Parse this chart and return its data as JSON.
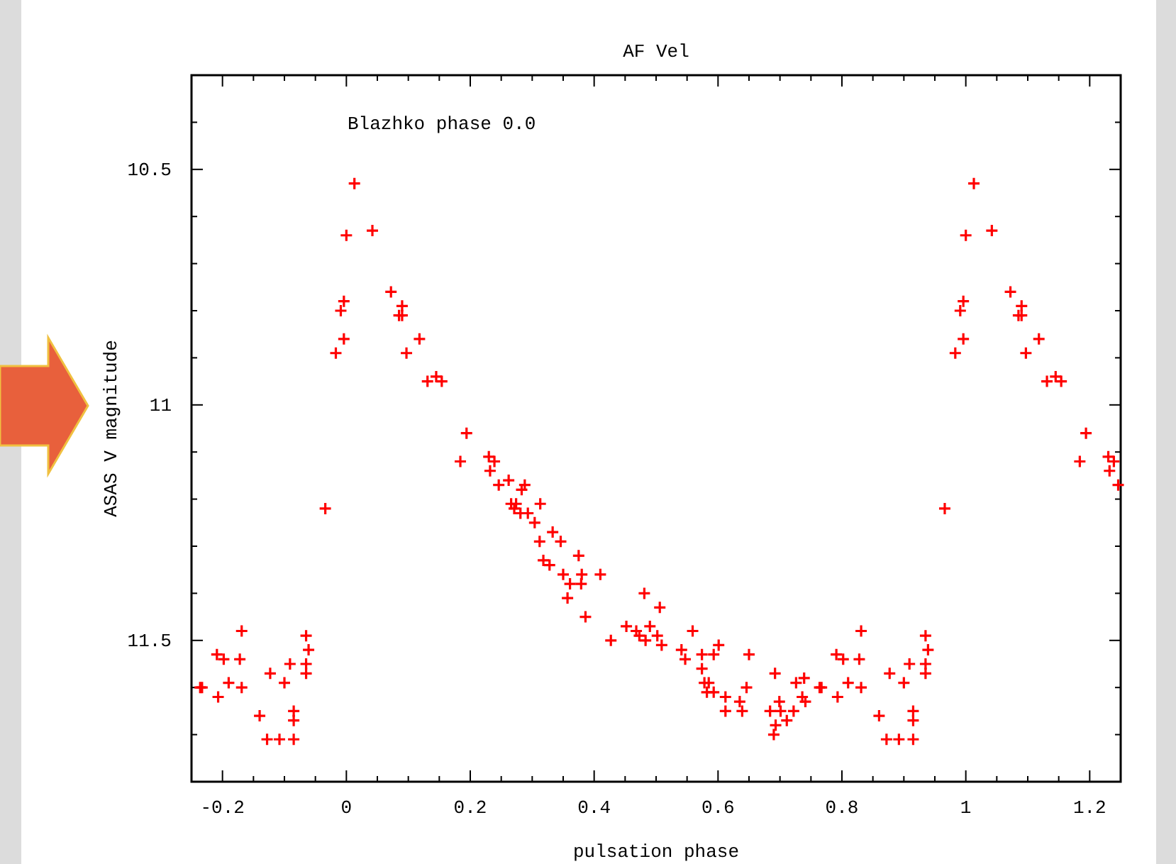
{
  "chart_data": {
    "type": "scatter",
    "title": "AF Vel",
    "xlabel": "pulsation phase",
    "ylabel": "ASAS V magnitude",
    "annotations": [
      "Blazhko phase 0.0"
    ],
    "marker": "cross",
    "grid": false,
    "xlim": [
      -0.25,
      1.25
    ],
    "ylim": [
      11.8,
      10.3
    ],
    "xticks": [
      -0.2,
      {
        "value": -0.15,
        "label": null
      },
      {
        "value": -0.1,
        "label": null
      },
      {
        "value": -0.05,
        "label": null
      },
      0,
      {
        "value": 0.05,
        "label": null
      },
      {
        "value": 0.1,
        "label": null
      },
      {
        "value": 0.15,
        "label": null
      },
      0.2,
      {
        "value": 0.25,
        "label": null
      },
      {
        "value": 0.3,
        "label": null
      },
      {
        "value": 0.35,
        "label": null
      },
      0.4,
      {
        "value": 0.45,
        "label": null
      },
      {
        "value": 0.5,
        "label": null
      },
      {
        "value": 0.55,
        "label": null
      },
      0.6,
      {
        "value": 0.65,
        "label": null
      },
      {
        "value": 0.7,
        "label": null
      },
      {
        "value": 0.75,
        "label": null
      },
      0.8,
      {
        "value": 0.85,
        "label": null
      },
      {
        "value": 0.9,
        "label": null
      },
      {
        "value": 0.95,
        "label": null
      },
      1,
      {
        "value": 1.05,
        "label": null
      },
      {
        "value": 1.1,
        "label": null
      },
      {
        "value": 1.15,
        "label": null
      },
      1.2
    ],
    "yticks": [
      {
        "value": 10.4,
        "label": null
      },
      10.5,
      {
        "value": 10.6,
        "label": null
      },
      {
        "value": 10.7,
        "label": null
      },
      {
        "value": 10.8,
        "label": null
      },
      {
        "value": 10.9,
        "label": null
      },
      11,
      {
        "value": 11.1,
        "label": null
      },
      {
        "value": 11.2,
        "label": null
      },
      {
        "value": 11.3,
        "label": null
      },
      {
        "value": 11.4,
        "label": null
      },
      11.5,
      {
        "value": 11.6,
        "label": null
      },
      {
        "value": 11.7,
        "label": null
      }
    ],
    "series": [
      {
        "color": "#ff0000",
        "x": [
          -0.236,
          -0.233,
          -0.209,
          -0.198,
          -0.207,
          -0.19,
          -0.172,
          -0.169,
          -0.169,
          -0.14,
          -0.123,
          -0.128,
          -0.108,
          -0.085,
          -0.1,
          -0.091,
          -0.085,
          -0.085,
          -0.065,
          -0.061,
          -0.065,
          -0.065,
          -0.034,
          -0.004,
          -0.009,
          -0.004,
          -0.017,
          0.013,
          0,
          0.042,
          0.072,
          0.09,
          0.085,
          0.09,
          0.118,
          0.097,
          0.131,
          0.145,
          0.154,
          0.194,
          0.184,
          0.23,
          0.239,
          0.232,
          0.246,
          0.262,
          0.266,
          0.271,
          0.281,
          0.283,
          0.288,
          0.274,
          0.293,
          0.313,
          0.304,
          0.312,
          0.318,
          0.328,
          0.333,
          0.346,
          0.35,
          0.361,
          0.357,
          0.375,
          0.38,
          0.379,
          0.41,
          0.386,
          0.427,
          0.452,
          0.468,
          0.473,
          0.483,
          0.481,
          0.506,
          0.49,
          0.502,
          0.509,
          0.541,
          0.547,
          0.559,
          0.574,
          0.593,
          0.601,
          0.574,
          0.578,
          0.585,
          0.582,
          0.593,
          0.612,
          0.612,
          0.635,
          0.639,
          0.646,
          0.65,
          0.692,
          0.684,
          0.699,
          0.701,
          0.693,
          0.69,
          0.711,
          0.722,
          0.726,
          0.739,
          0.736,
          0.741,
          0.764,
          0.767,
          0.791,
          0.802,
          0.793,
          0.81,
          0.828,
          0.831,
          0.831,
          0.86,
          0.877,
          0.872,
          0.892,
          0.915,
          0.9,
          0.909,
          0.915,
          0.915,
          0.935,
          0.939,
          0.935,
          0.935,
          0.966,
          0.996,
          0.991,
          0.996,
          0.983,
          1.013,
          1,
          1.042,
          1.072,
          1.09,
          1.085,
          1.09,
          1.118,
          1.097,
          1.131,
          1.145,
          1.154,
          1.194,
          1.184,
          1.23,
          1.239,
          1.232,
          1.246
        ],
        "values": [
          11.6,
          11.6,
          11.53,
          11.54,
          11.62,
          11.59,
          11.54,
          11.48,
          11.6,
          11.66,
          11.57,
          11.71,
          11.71,
          11.71,
          11.59,
          11.55,
          11.65,
          11.67,
          11.49,
          11.52,
          11.55,
          11.57,
          11.22,
          10.78,
          10.8,
          10.86,
          10.89,
          10.53,
          10.64,
          10.63,
          10.76,
          10.79,
          10.81,
          10.81,
          10.86,
          10.89,
          10.95,
          10.94,
          10.95,
          11.06,
          11.12,
          11.11,
          11.12,
          11.14,
          11.17,
          11.16,
          11.21,
          11.22,
          11.23,
          11.18,
          11.17,
          11.21,
          11.23,
          11.21,
          11.25,
          11.29,
          11.33,
          11.34,
          11.27,
          11.29,
          11.36,
          11.38,
          11.41,
          11.32,
          11.36,
          11.38,
          11.36,
          11.45,
          11.5,
          11.47,
          11.48,
          11.49,
          11.5,
          11.4,
          11.43,
          11.47,
          11.49,
          11.51,
          11.52,
          11.54,
          11.48,
          11.53,
          11.53,
          11.51,
          11.56,
          11.59,
          11.59,
          11.61,
          11.61,
          11.62,
          11.65,
          11.63,
          11.65,
          11.6,
          11.53,
          11.57,
          11.65,
          11.63,
          11.65,
          11.68,
          11.7,
          11.67,
          11.65,
          11.59,
          11.58,
          11.62,
          11.63,
          11.6,
          11.6,
          11.53,
          11.54,
          11.62,
          11.59,
          11.54,
          11.48,
          11.6,
          11.66,
          11.57,
          11.71,
          11.71,
          11.71,
          11.59,
          11.55,
          11.65,
          11.67,
          11.49,
          11.52,
          11.55,
          11.57,
          11.22,
          10.78,
          10.8,
          10.86,
          10.89,
          10.53,
          10.64,
          10.63,
          10.76,
          10.79,
          10.81,
          10.81,
          10.86,
          10.89,
          10.95,
          10.94,
          10.95,
          11.06,
          11.12,
          11.11,
          11.12,
          11.14,
          11.17
        ]
      }
    ]
  }
}
